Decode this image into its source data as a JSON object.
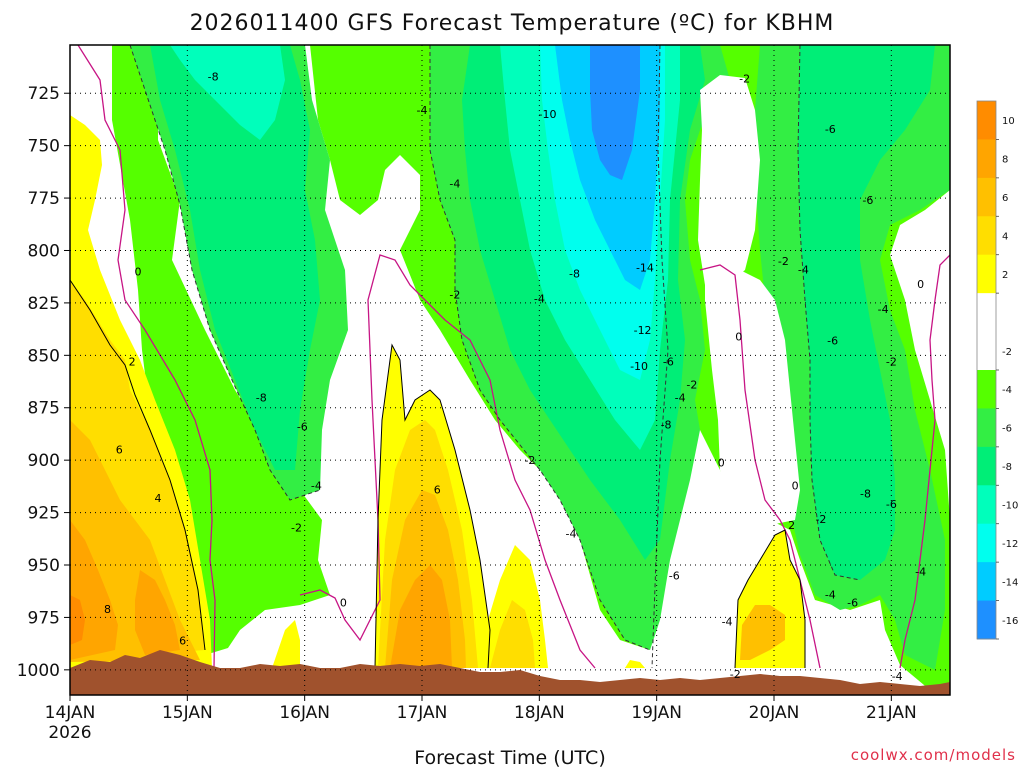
{
  "chart_data": {
    "type": "heatmap",
    "title": "2026011400 GFS Forecast Temperature (ºC) for KBHM",
    "xlabel": "Forecast Time (UTC)",
    "ylabel": "",
    "credit": "coolwx.com/models",
    "x_ticks": [
      "14JAN",
      "15JAN",
      "16JAN",
      "17JAN",
      "18JAN",
      "19JAN",
      "20JAN",
      "21JAN"
    ],
    "x_year_label": "2026",
    "y_ticks": [
      "725",
      "750",
      "775",
      "800",
      "825",
      "850",
      "875",
      "900",
      "925",
      "950",
      "975",
      "1000"
    ],
    "y_tick_values": [
      725,
      750,
      775,
      800,
      825,
      850,
      875,
      900,
      925,
      950,
      975,
      1000
    ],
    "xlim": [
      0,
      7.5
    ],
    "ylim_hpa": [
      1012,
      702
    ],
    "contour_interval_c": 2,
    "colorbar": {
      "labels": [
        "10",
        "8",
        "6",
        "4",
        "2",
        "-2",
        "-4",
        "-6",
        "-8",
        "-10",
        "-12",
        "-14",
        "-16"
      ],
      "colors": [
        "#ff8c00",
        "#ffa500",
        "#ffc000",
        "#ffde00",
        "#ffff00",
        "#ffffff",
        "#55ff00",
        "#33ee44",
        "#00ee77",
        "#00ffbb",
        "#00ffee",
        "#00ccff",
        "#1e90ff"
      ],
      "band_order_top_to_bottom": [
        "#ff8c00",
        "#ffa500",
        "#ffc000",
        "#ffde00",
        "#ffff00",
        "#ffffff",
        "#ffffff",
        "#55ff00",
        "#33ee44",
        "#00ee77",
        "#00ffbb",
        "#00ffee",
        "#00ccff",
        "#1e90ff"
      ]
    },
    "contour_labels": [
      {
        "text": "-8",
        "t": 1.22,
        "p": 717
      },
      {
        "text": "-4",
        "t": 3.0,
        "p": 733
      },
      {
        "text": "-10",
        "t": 4.07,
        "p": 735
      },
      {
        "text": "-2",
        "t": 5.75,
        "p": 718
      },
      {
        "text": "-6",
        "t": 6.48,
        "p": 742
      },
      {
        "text": "-4",
        "t": 3.28,
        "p": 768
      },
      {
        "text": "-6",
        "t": 6.8,
        "p": 776
      },
      {
        "text": "0",
        "t": 0.58,
        "p": 810
      },
      {
        "text": "-2",
        "t": 3.28,
        "p": 821
      },
      {
        "text": "-4",
        "t": 4.0,
        "p": 823
      },
      {
        "text": "-8",
        "t": 4.3,
        "p": 811
      },
      {
        "text": "-14",
        "t": 4.9,
        "p": 808
      },
      {
        "text": "-2",
        "t": 6.08,
        "p": 805
      },
      {
        "text": "-4",
        "t": 6.25,
        "p": 809
      },
      {
        "text": "0",
        "t": 7.25,
        "p": 816
      },
      {
        "text": "-4",
        "t": 6.93,
        "p": 828
      },
      {
        "text": "-12",
        "t": 4.88,
        "p": 838
      },
      {
        "text": "0",
        "t": 5.7,
        "p": 841
      },
      {
        "text": "-6",
        "t": 6.5,
        "p": 843
      },
      {
        "text": "2",
        "t": 0.53,
        "p": 853
      },
      {
        "text": "-10",
        "t": 4.85,
        "p": 855
      },
      {
        "text": "-6",
        "t": 5.1,
        "p": 853
      },
      {
        "text": "-2",
        "t": 7.0,
        "p": 853
      },
      {
        "text": "-8",
        "t": 1.63,
        "p": 870
      },
      {
        "text": "-2",
        "t": 5.3,
        "p": 864
      },
      {
        "text": "-4",
        "t": 5.2,
        "p": 870
      },
      {
        "text": "-6",
        "t": 1.98,
        "p": 884
      },
      {
        "text": "-8",
        "t": 5.08,
        "p": 883
      },
      {
        "text": "-2",
        "t": 3.92,
        "p": 900
      },
      {
        "text": "0",
        "t": 5.55,
        "p": 901
      },
      {
        "text": "6",
        "t": 0.42,
        "p": 895
      },
      {
        "text": "-4",
        "t": 2.1,
        "p": 912
      },
      {
        "text": "0",
        "t": 6.18,
        "p": 912
      },
      {
        "text": "6",
        "t": 3.13,
        "p": 914
      },
      {
        "text": "-8",
        "t": 6.78,
        "p": 916
      },
      {
        "text": "-6",
        "t": 7.0,
        "p": 921
      },
      {
        "text": "4",
        "t": 0.75,
        "p": 918
      },
      {
        "text": "-2",
        "t": 1.93,
        "p": 932
      },
      {
        "text": "-4",
        "t": 4.27,
        "p": 935
      },
      {
        "text": "2",
        "t": 6.15,
        "p": 931
      },
      {
        "text": "-2",
        "t": 6.4,
        "p": 928
      },
      {
        "text": "-6",
        "t": 5.15,
        "p": 955
      },
      {
        "text": "-4",
        "t": 7.25,
        "p": 953
      },
      {
        "text": "0",
        "t": 2.33,
        "p": 968
      },
      {
        "text": "-4",
        "t": 6.48,
        "p": 964
      },
      {
        "text": "-6",
        "t": 6.67,
        "p": 968
      },
      {
        "text": "8",
        "t": 0.32,
        "p": 971
      },
      {
        "text": "6",
        "t": 0.96,
        "p": 986
      },
      {
        "text": "-4",
        "t": 5.6,
        "p": 977
      },
      {
        "text": "-2",
        "t": 5.67,
        "p": 1002
      },
      {
        "text": "-4",
        "t": 7.05,
        "p": 1003
      }
    ]
  }
}
